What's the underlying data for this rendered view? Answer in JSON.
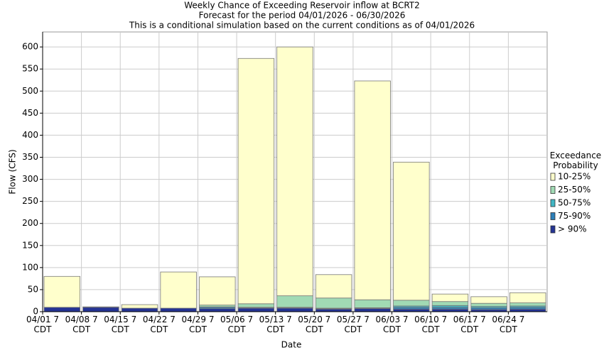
{
  "chart_data": {
    "type": "stacked_bar",
    "title": "Weekly Chance of Exceeding Reservoir inflow at BCRT2",
    "subtitle": "Forecast for the period 04/01/2026 - 06/30/2026",
    "note": "This is a conditional simulation based on the current conditions as of 04/01/2026",
    "x_label": "Date",
    "y_label": "Flow (CFS)",
    "legend_title": "Exceedance Probability",
    "categories": [
      "04/01 7 CDT",
      "04/08 7 CDT",
      "04/15 7 CDT",
      "04/22 7 CDT",
      "04/29 7 CDT",
      "05/06 7 CDT",
      "05/13 7 CDT",
      "05/20 7 CDT",
      "05/27 7 CDT",
      "06/03 7 CDT",
      "06/10 7 CDT",
      "06/17 7 CDT",
      "06/24 7 CDT"
    ],
    "series": [
      {
        "name": "> 90%",
        "color": "#253494",
        "values": [
          10,
          10,
          8,
          8,
          7,
          8,
          8,
          6,
          7,
          6,
          6,
          5,
          6
        ]
      },
      {
        "name": "75-90%",
        "color": "#2c7fb8",
        "values": [
          0,
          1,
          0,
          0,
          3,
          1,
          1,
          1,
          1,
          4,
          4,
          4,
          4
        ]
      },
      {
        "name": "50-75%",
        "color": "#41b6c4",
        "values": [
          0,
          0,
          0,
          0,
          1,
          1,
          1,
          1,
          1,
          3,
          4,
          3,
          3
        ]
      },
      {
        "name": "25-50%",
        "color": "#a1dab4",
        "values": [
          0,
          0,
          0,
          0,
          4,
          8,
          26,
          23,
          18,
          13,
          9,
          7,
          7
        ]
      },
      {
        "name": "10-25%",
        "color": "#ffffcc",
        "values": [
          70,
          0,
          8,
          82,
          64,
          556,
          564,
          53,
          496,
          313,
          17,
          15,
          23
        ]
      }
    ],
    "ylim": [
      0,
      634
    ],
    "yticks": [
      0,
      50,
      100,
      150,
      200,
      250,
      300,
      350,
      400,
      450,
      500,
      550,
      600
    ],
    "grid": true,
    "legend": "right"
  }
}
